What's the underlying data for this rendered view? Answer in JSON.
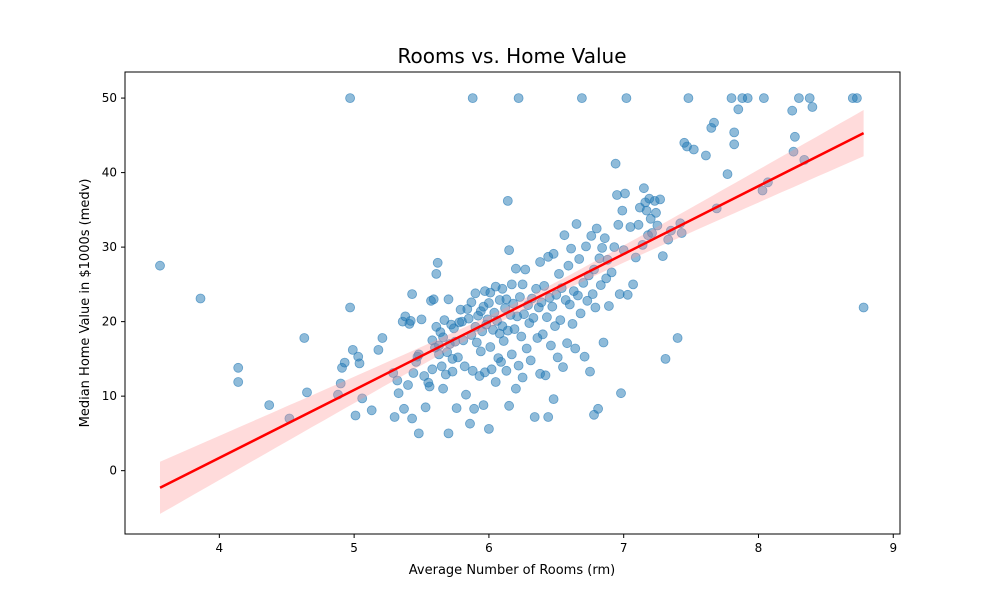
{
  "chart_data": {
    "type": "scatter",
    "title": "Rooms vs. Home Value",
    "xlabel": "Average Number of Rooms (rm)",
    "ylabel": "Median Home Value in $1000s (medv)",
    "xlim": [
      3.3,
      9.05
    ],
    "ylim": [
      -8.5,
      53.5
    ],
    "x_ticks": [
      4,
      5,
      6,
      7,
      8,
      9
    ],
    "y_ticks": [
      0,
      10,
      20,
      30,
      40,
      50
    ],
    "grid": false,
    "legend": "none",
    "colors": {
      "points": "#1f77b4",
      "regression_line": "#ff0000",
      "confidence_band": "#ff9999"
    },
    "regression": {
      "x": [
        3.56,
        8.78
      ],
      "y": [
        -2.3,
        45.3
      ],
      "ci_upper_at_ends": [
        1.4,
        48.3
      ],
      "ci_lower_at_ends": [
        -5.6,
        42.1
      ]
    },
    "points": [
      [
        3.56,
        27.5
      ],
      [
        3.86,
        23.1
      ],
      [
        4.14,
        13.8
      ],
      [
        4.14,
        11.9
      ],
      [
        4.37,
        8.8
      ],
      [
        4.52,
        7.0
      ],
      [
        4.63,
        17.8
      ],
      [
        4.65,
        10.5
      ],
      [
        4.88,
        10.2
      ],
      [
        4.9,
        11.7
      ],
      [
        4.91,
        13.8
      ],
      [
        4.93,
        14.5
      ],
      [
        4.97,
        21.9
      ],
      [
        4.97,
        50.0
      ],
      [
        4.99,
        16.2
      ],
      [
        5.01,
        7.4
      ],
      [
        5.03,
        15.3
      ],
      [
        5.04,
        14.4
      ],
      [
        5.06,
        9.7
      ],
      [
        5.13,
        8.1
      ],
      [
        5.18,
        16.2
      ],
      [
        5.21,
        17.8
      ],
      [
        5.29,
        13.1
      ],
      [
        5.3,
        7.2
      ],
      [
        5.32,
        12.1
      ],
      [
        5.33,
        10.4
      ],
      [
        5.36,
        20.0
      ],
      [
        5.37,
        8.3
      ],
      [
        5.38,
        20.7
      ],
      [
        5.4,
        11.5
      ],
      [
        5.41,
        19.7
      ],
      [
        5.42,
        20.1
      ],
      [
        5.43,
        7.0
      ],
      [
        5.43,
        23.7
      ],
      [
        5.44,
        13.1
      ],
      [
        5.46,
        14.6
      ],
      [
        5.47,
        15.3
      ],
      [
        5.48,
        5.0
      ],
      [
        5.48,
        15.6
      ],
      [
        5.5,
        20.3
      ],
      [
        5.52,
        12.7
      ],
      [
        5.53,
        8.5
      ],
      [
        5.55,
        11.8
      ],
      [
        5.56,
        11.3
      ],
      [
        5.57,
        22.8
      ],
      [
        5.58,
        13.6
      ],
      [
        5.58,
        17.5
      ],
      [
        5.59,
        23.0
      ],
      [
        5.6,
        16.5
      ],
      [
        5.61,
        19.3
      ],
      [
        5.61,
        26.4
      ],
      [
        5.62,
        27.9
      ],
      [
        5.63,
        15.6
      ],
      [
        5.63,
        16.8
      ],
      [
        5.64,
        18.6
      ],
      [
        5.65,
        14.0
      ],
      [
        5.66,
        11.0
      ],
      [
        5.66,
        17.9
      ],
      [
        5.67,
        20.2
      ],
      [
        5.68,
        12.9
      ],
      [
        5.69,
        15.9
      ],
      [
        5.7,
        23.0
      ],
      [
        5.7,
        5.0
      ],
      [
        5.71,
        17.0
      ],
      [
        5.72,
        19.6
      ],
      [
        5.73,
        15.0
      ],
      [
        5.73,
        13.3
      ],
      [
        5.74,
        19.1
      ],
      [
        5.75,
        17.3
      ],
      [
        5.76,
        8.4
      ],
      [
        5.77,
        15.2
      ],
      [
        5.78,
        19.9
      ],
      [
        5.79,
        21.6
      ],
      [
        5.8,
        20.0
      ],
      [
        5.81,
        17.5
      ],
      [
        5.82,
        14.0
      ],
      [
        5.83,
        10.2
      ],
      [
        5.84,
        21.7
      ],
      [
        5.85,
        20.4
      ],
      [
        5.86,
        6.3
      ],
      [
        5.87,
        18.2
      ],
      [
        5.87,
        22.6
      ],
      [
        5.88,
        13.4
      ],
      [
        5.88,
        50.0
      ],
      [
        5.89,
        8.3
      ],
      [
        5.9,
        19.3
      ],
      [
        5.9,
        23.8
      ],
      [
        5.91,
        17.2
      ],
      [
        5.92,
        20.8
      ],
      [
        5.93,
        12.7
      ],
      [
        5.94,
        16.0
      ],
      [
        5.94,
        21.4
      ],
      [
        5.95,
        18.7
      ],
      [
        5.96,
        8.8
      ],
      [
        5.96,
        22.0
      ],
      [
        5.97,
        13.2
      ],
      [
        5.97,
        24.1
      ],
      [
        5.98,
        19.6
      ],
      [
        5.99,
        20.3
      ],
      [
        6.0,
        5.6
      ],
      [
        6.0,
        22.5
      ],
      [
        6.01,
        16.6
      ],
      [
        6.01,
        23.9
      ],
      [
        6.02,
        13.6
      ],
      [
        6.03,
        18.9
      ],
      [
        6.04,
        21.2
      ],
      [
        6.05,
        11.9
      ],
      [
        6.05,
        24.7
      ],
      [
        6.06,
        20.1
      ],
      [
        6.07,
        15.1
      ],
      [
        6.08,
        18.4
      ],
      [
        6.08,
        22.9
      ],
      [
        6.09,
        14.6
      ],
      [
        6.1,
        19.4
      ],
      [
        6.1,
        24.4
      ],
      [
        6.11,
        17.4
      ],
      [
        6.12,
        21.8
      ],
      [
        6.13,
        13.4
      ],
      [
        6.13,
        23.0
      ],
      [
        6.14,
        18.8
      ],
      [
        6.14,
        36.2
      ],
      [
        6.15,
        8.7
      ],
      [
        6.15,
        29.6
      ],
      [
        6.16,
        20.9
      ],
      [
        6.17,
        15.6
      ],
      [
        6.17,
        25.0
      ],
      [
        6.18,
        22.4
      ],
      [
        6.19,
        19.0
      ],
      [
        6.2,
        11.0
      ],
      [
        6.2,
        27.1
      ],
      [
        6.21,
        20.7
      ],
      [
        6.22,
        14.1
      ],
      [
        6.22,
        50.0
      ],
      [
        6.23,
        23.3
      ],
      [
        6.24,
        18.0
      ],
      [
        6.25,
        12.5
      ],
      [
        6.25,
        25.0
      ],
      [
        6.26,
        21.0
      ],
      [
        6.27,
        27.0
      ],
      [
        6.28,
        16.4
      ],
      [
        6.29,
        22.2
      ],
      [
        6.3,
        19.8
      ],
      [
        6.31,
        14.8
      ],
      [
        6.32,
        23.1
      ],
      [
        6.33,
        20.5
      ],
      [
        6.34,
        7.2
      ],
      [
        6.35,
        24.4
      ],
      [
        6.36,
        17.8
      ],
      [
        6.37,
        21.9
      ],
      [
        6.38,
        13.0
      ],
      [
        6.38,
        28.0
      ],
      [
        6.39,
        22.6
      ],
      [
        6.4,
        18.3
      ],
      [
        6.41,
        24.8
      ],
      [
        6.42,
        12.8
      ],
      [
        6.43,
        20.6
      ],
      [
        6.44,
        7.2
      ],
      [
        6.44,
        28.7
      ],
      [
        6.45,
        23.2
      ],
      [
        6.46,
        16.8
      ],
      [
        6.47,
        22.0
      ],
      [
        6.48,
        9.6
      ],
      [
        6.48,
        29.1
      ],
      [
        6.49,
        19.4
      ],
      [
        6.5,
        23.6
      ],
      [
        6.51,
        15.2
      ],
      [
        6.52,
        26.4
      ],
      [
        6.53,
        20.2
      ],
      [
        6.54,
        24.5
      ],
      [
        6.55,
        13.9
      ],
      [
        6.56,
        31.6
      ],
      [
        6.57,
        22.9
      ],
      [
        6.58,
        17.1
      ],
      [
        6.59,
        27.5
      ],
      [
        6.6,
        22.3
      ],
      [
        6.61,
        29.8
      ],
      [
        6.62,
        19.7
      ],
      [
        6.63,
        24.1
      ],
      [
        6.64,
        16.4
      ],
      [
        6.65,
        33.1
      ],
      [
        6.66,
        23.5
      ],
      [
        6.67,
        28.4
      ],
      [
        6.68,
        21.1
      ],
      [
        6.69,
        50.0
      ],
      [
        6.7,
        25.2
      ],
      [
        6.71,
        15.3
      ],
      [
        6.72,
        30.1
      ],
      [
        6.73,
        22.8
      ],
      [
        6.74,
        26.2
      ],
      [
        6.75,
        13.3
      ],
      [
        6.76,
        31.5
      ],
      [
        6.77,
        23.7
      ],
      [
        6.78,
        7.5
      ],
      [
        6.78,
        27.0
      ],
      [
        6.79,
        21.9
      ],
      [
        6.8,
        32.5
      ],
      [
        6.81,
        8.3
      ],
      [
        6.82,
        28.5
      ],
      [
        6.83,
        24.9
      ],
      [
        6.84,
        29.9
      ],
      [
        6.85,
        17.2
      ],
      [
        6.86,
        31.2
      ],
      [
        6.87,
        25.8
      ],
      [
        6.88,
        28.3
      ],
      [
        6.89,
        22.1
      ],
      [
        6.91,
        26.6
      ],
      [
        6.93,
        30.0
      ],
      [
        6.94,
        41.2
      ],
      [
        6.95,
        37.0
      ],
      [
        6.96,
        33.0
      ],
      [
        6.97,
        23.7
      ],
      [
        6.98,
        10.4
      ],
      [
        6.99,
        34.9
      ],
      [
        7.0,
        29.6
      ],
      [
        7.01,
        37.2
      ],
      [
        7.02,
        50.0
      ],
      [
        7.03,
        23.6
      ],
      [
        7.05,
        32.7
      ],
      [
        7.07,
        25.0
      ],
      [
        7.09,
        28.6
      ],
      [
        7.11,
        33.0
      ],
      [
        7.12,
        35.3
      ],
      [
        7.14,
        30.3
      ],
      [
        7.15,
        37.9
      ],
      [
        7.16,
        36.0
      ],
      [
        7.17,
        34.9
      ],
      [
        7.18,
        31.6
      ],
      [
        7.19,
        36.5
      ],
      [
        7.2,
        33.8
      ],
      [
        7.21,
        31.9
      ],
      [
        7.23,
        36.2
      ],
      [
        7.24,
        34.6
      ],
      [
        7.25,
        32.9
      ],
      [
        7.27,
        36.4
      ],
      [
        7.29,
        28.8
      ],
      [
        7.31,
        15.0
      ],
      [
        7.33,
        31.0
      ],
      [
        7.35,
        32.2
      ],
      [
        7.4,
        17.8
      ],
      [
        7.42,
        33.2
      ],
      [
        7.43,
        31.9
      ],
      [
        7.45,
        44.0
      ],
      [
        7.47,
        43.5
      ],
      [
        7.48,
        50.0
      ],
      [
        7.52,
        43.1
      ],
      [
        7.61,
        42.3
      ],
      [
        7.65,
        46.0
      ],
      [
        7.67,
        46.7
      ],
      [
        7.69,
        35.2
      ],
      [
        7.77,
        39.8
      ],
      [
        7.8,
        50.0
      ],
      [
        7.82,
        43.8
      ],
      [
        7.82,
        45.4
      ],
      [
        7.85,
        48.5
      ],
      [
        7.88,
        50.0
      ],
      [
        7.92,
        50.0
      ],
      [
        8.03,
        37.6
      ],
      [
        8.04,
        50.0
      ],
      [
        8.07,
        38.7
      ],
      [
        8.25,
        48.3
      ],
      [
        8.26,
        42.8
      ],
      [
        8.27,
        44.8
      ],
      [
        8.3,
        50.0
      ],
      [
        8.34,
        41.7
      ],
      [
        8.38,
        50.0
      ],
      [
        8.4,
        48.8
      ],
      [
        8.7,
        50.0
      ],
      [
        8.73,
        50.0
      ],
      [
        8.78,
        21.9
      ]
    ]
  }
}
